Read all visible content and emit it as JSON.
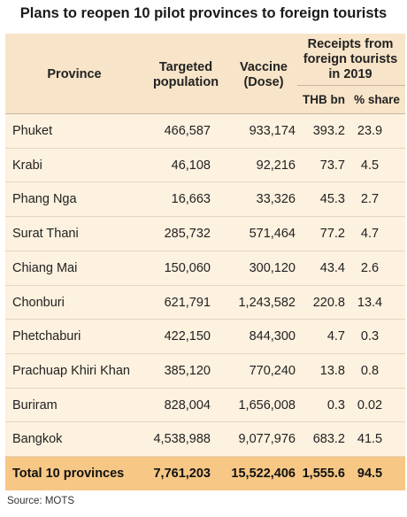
{
  "title": "Plans to reopen 10 pilot provinces to foreign tourists",
  "columns": {
    "province": "Province",
    "population_1": "Targeted",
    "population_2": "population",
    "vaccine_1": "Vaccine",
    "vaccine_2": "(Dose)",
    "receipts_1": "Receipts from",
    "receipts_2": "foreign tourists",
    "receipts_3": "in 2019",
    "thb": "THB bn",
    "share": "% share"
  },
  "rows": [
    {
      "province": "Phuket",
      "population": "466,587",
      "vaccine": "933,174",
      "thb": "393.2",
      "share": "23.9"
    },
    {
      "province": "Krabi",
      "population": "46,108",
      "vaccine": "92,216",
      "thb": "73.7",
      "share": "4.5"
    },
    {
      "province": "Phang Nga",
      "population": "16,663",
      "vaccine": "33,326",
      "thb": "45.3",
      "share": "2.7"
    },
    {
      "province": "Surat Thani",
      "population": "285,732",
      "vaccine": "571,464",
      "thb": "77.2",
      "share": "4.7"
    },
    {
      "province": "Chiang Mai",
      "population": "150,060",
      "vaccine": "300,120",
      "thb": "43.4",
      "share": "2.6"
    },
    {
      "province": "Chonburi",
      "population": "621,791",
      "vaccine": "1,243,582",
      "thb": "220.8",
      "share": "13.4"
    },
    {
      "province": "Phetchaburi",
      "population": "422,150",
      "vaccine": "844,300",
      "thb": "4.7",
      "share": "0.3"
    },
    {
      "province": "Prachuap Khiri Khan",
      "population": "385,120",
      "vaccine": "770,240",
      "thb": "13.8",
      "share": "0.8"
    },
    {
      "province": "Buriram",
      "population": "828,004",
      "vaccine": "1,656,008",
      "thb": "0.3",
      "share": "0.02"
    },
    {
      "province": "Bangkok",
      "population": "4,538,988",
      "vaccine": "9,077,976",
      "thb": "683.2",
      "share": "41.5"
    }
  ],
  "total": {
    "label": "Total 10 provinces",
    "population": "7,761,203",
    "vaccine": "15,522,406",
    "thb": "1,555.6",
    "share": "94.5"
  },
  "source": "Source: MOTS",
  "colors": {
    "header_bg": "#f8e4c8",
    "body_bg": "#fdf1df",
    "total_bg": "#f7c785",
    "rule": "#c9b7a0"
  }
}
